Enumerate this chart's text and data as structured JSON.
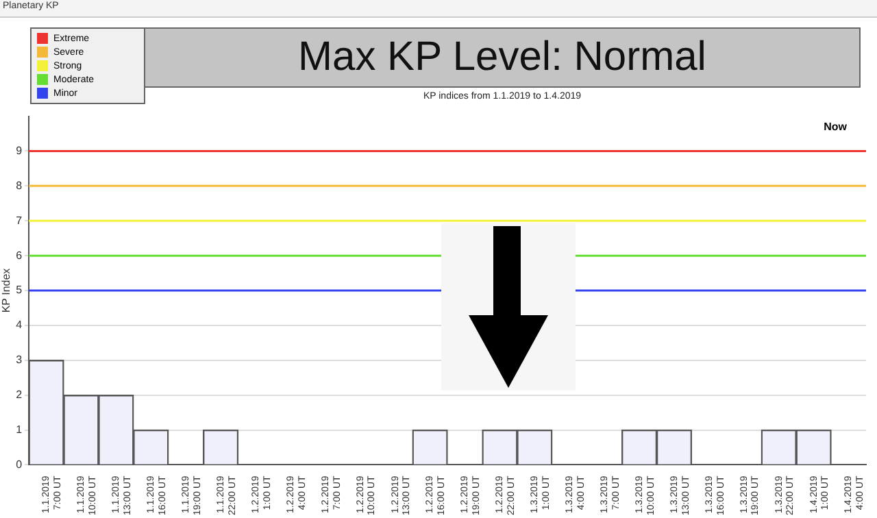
{
  "chart_data": {
    "type": "bar",
    "title": "Max KP Level: Normal",
    "subtitle": "KP indices from 1.1.2019 to 1.4.2019",
    "ylabel": "KP Index",
    "annotations": [
      "Planetary KP",
      "Now"
    ],
    "categories": [
      "1.1.2019 7:00 UT",
      "1.1.2019 10:00 UT",
      "1.1.2019 13:00 UT",
      "1.1.2019 16:00 UT",
      "1.1.2019 19:00 UT",
      "1.1.2019 22:00 UT",
      "1.2.2019 1:00 UT",
      "1.2.2019 4:00 UT",
      "1.2.2019 7:00 UT",
      "1.2.2019 10:00 UT",
      "1.2.2019 13:00 UT",
      "1.2.2019 16:00 UT",
      "1.2.2019 19:00 UT",
      "1.2.2019 22:00 UT",
      "1.3.2019 1:00 UT",
      "1.3.2019 4:00 UT",
      "1.3.2019 7:00 UT",
      "1.3.2019 10:00 UT",
      "1.3.2019 13:00 UT",
      "1.3.2019 16:00 UT",
      "1.3.2019 19:00 UT",
      "1.3.2019 22:00 UT",
      "1.4.2019 1:00 UT",
      "1.4.2019 4:00 UT"
    ],
    "values": [
      3,
      2,
      2,
      1,
      0,
      1,
      0,
      0,
      0,
      0,
      0,
      1,
      0,
      1,
      1,
      0,
      0,
      1,
      1,
      0,
      0,
      1,
      1,
      0
    ],
    "color": "#f0f0fc",
    "ylim": [
      0,
      10
    ],
    "yticks": [
      0,
      1,
      2,
      3,
      4,
      5,
      6,
      7,
      8,
      9
    ],
    "grid": "y",
    "legend": "top left",
    "ref_lines": [
      {
        "axis": "y",
        "value": 9,
        "label": "Extreme",
        "color": "#ee3333"
      },
      {
        "axis": "y",
        "value": 8,
        "label": "Severe",
        "color": "#f5b93a"
      },
      {
        "axis": "y",
        "value": 7,
        "label": "Strong",
        "color": "#f2f23a"
      },
      {
        "axis": "y",
        "value": 6,
        "label": "Moderate",
        "color": "#66dd33"
      },
      {
        "axis": "y",
        "value": 5,
        "label": "Minor",
        "color": "#3344ee"
      }
    ]
  }
}
